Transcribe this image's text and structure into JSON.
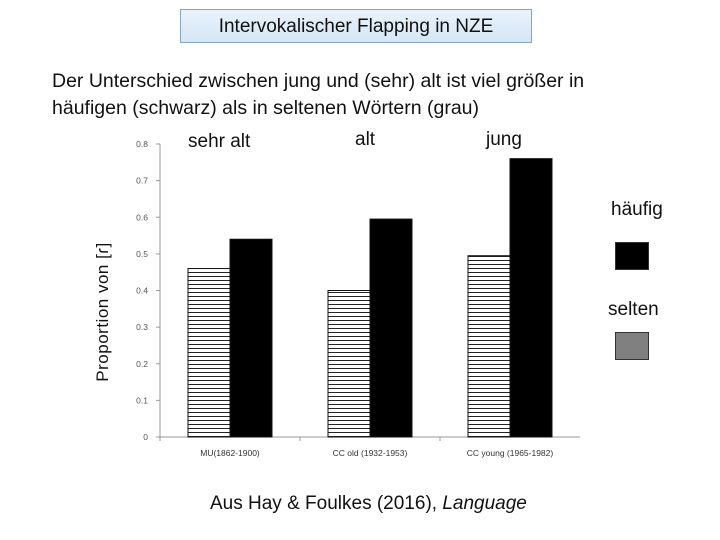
{
  "header": {
    "title": "Intervokalischer Flapping in NZE"
  },
  "subtitle": {
    "line1": "Der Unterschied zwischen jung und (sehr) alt ist viel größer in",
    "line2": "häufigen (schwarz) als in seltenen Wörtern (grau)"
  },
  "group_labels": {
    "sehr_alt": "sehr alt",
    "alt": "alt",
    "jung": "jung"
  },
  "legend": {
    "frequent_label": "häufig",
    "frequent_color": "#000000",
    "rare_label": "selten",
    "rare_color": "#808080"
  },
  "citation": {
    "prefix": "Aus Hay & Foulkes (2016), ",
    "journal": "Language"
  },
  "chart_data": {
    "type": "bar",
    "categories": [
      "MU(1862-1900)",
      "CC old (1932-1953)",
      "CC young (1965-1982)"
    ],
    "series": [
      {
        "name": "selten",
        "values": [
          0.46,
          0.4,
          0.495
        ],
        "color": "#ffffff",
        "pattern": "horizontal-stripes"
      },
      {
        "name": "häufig",
        "values": [
          0.54,
          0.595,
          0.76
        ],
        "color": "#000000"
      }
    ],
    "ylabel": "Proportion von [ɾ]",
    "ylim": [
      0,
      0.8
    ],
    "yticks": [
      0,
      0.1,
      0.2,
      0.3,
      0.4,
      0.5,
      0.6,
      0.7,
      0.8
    ],
    "ytick_labels": [
      "0",
      "0.1",
      "0.2",
      "0.3",
      "0.4",
      "0.5",
      "0.6",
      "0.7",
      "0.8"
    ],
    "grid": false
  }
}
